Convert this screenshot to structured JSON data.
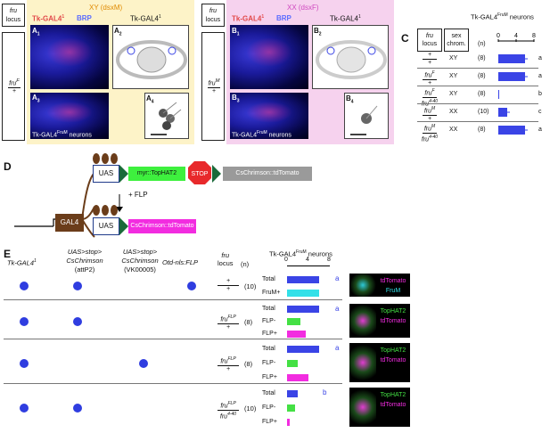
{
  "panel_A": {
    "fru_locus_header_1": "fru",
    "fru_locus_header_2": "locus",
    "genotype_top": "fru",
    "genotype_top_sup": "F",
    "genotype_bottom": "+",
    "xy_title": "XY (dsxM)",
    "tk_gal4": "Tk-GAL4",
    "tk_gal4_sup": "1",
    "brp": "BRP",
    "a1": "A",
    "a1_sub": "1",
    "a2": "A",
    "a2_sub": "2",
    "a3": "A",
    "a3_sub": "3",
    "a4": "A",
    "a4_sub": "4",
    "neurons_label": "Tk-GAL4",
    "neurons_sup": "FruM",
    "neurons_suffix": " neurons"
  },
  "panel_B": {
    "fru_locus_header_1": "fru",
    "fru_locus_header_2": "locus",
    "genotype_top": "fru",
    "genotype_top_sup": "M",
    "genotype_bottom": "+",
    "xx_title": "XX (dsxF)",
    "tk_gal4": "Tk-GAL4",
    "tk_gal4_sup": "1",
    "brp": "BRP",
    "b1": "B",
    "b1_sub": "1",
    "b2": "B",
    "b2_sub": "2",
    "b3": "B",
    "b3_sub": "3",
    "b4": "B",
    "b4_sub": "4",
    "neurons_label": "Tk-GAL4",
    "neurons_sup": "FruM",
    "neurons_suffix": " neurons"
  },
  "panel_C": {
    "letter": "C",
    "col_fru": "fru",
    "col_locus": "locus",
    "col_sex": "sex",
    "col_chrom": "chrom.",
    "col_n": "(n)",
    "title": "Tk-GAL4",
    "title_sup": "FruM",
    "title_suffix": " neurons",
    "ticks": [
      "0",
      "4",
      "8"
    ],
    "rows": [
      {
        "top": "+",
        "bottom": "+",
        "sex": "XY",
        "n": "(8)",
        "letter": "a"
      },
      {
        "top": "fru",
        "top_sup": "F",
        "bottom": "+",
        "sex": "XY",
        "n": "(8)",
        "letter": "a"
      },
      {
        "top": "fru",
        "top_sup": "F",
        "bottom": "fru",
        "bottom_sup": "4-40",
        "sex": "XY",
        "n": "(8)",
        "letter": "b"
      },
      {
        "top": "fru",
        "top_sup": "M",
        "bottom": "+",
        "sex": "XX",
        "n": "(10)",
        "letter": "c"
      },
      {
        "top": "fru",
        "top_sup": "M",
        "bottom": "fru",
        "bottom_sup": "4-40",
        "sex": "XX",
        "n": "(8)",
        "letter": "a"
      }
    ]
  },
  "chart_data": {
    "type": "bar",
    "title": "Tk-GAL4FruM neurons",
    "categories": [
      "+/+ XY",
      "fruF/+ XY",
      "fruF/fru4-40 XY",
      "fruM/+ XX",
      "fruM/fru4-40 XX"
    ],
    "values": [
      6,
      6,
      0,
      2,
      6
    ],
    "xlim": [
      0,
      8
    ]
  },
  "panel_D": {
    "letter": "D",
    "gal4": "GAL4",
    "uas": "UAS",
    "uas2": "UAS",
    "tophat": "myr::TopHAT2",
    "stop": "STOP",
    "cschrimson": "CsChrimson::tdTomato",
    "flp": "+ FLP",
    "cschrimson2": "CsChrimson::tdTomato"
  },
  "panel_E": {
    "letter": "E",
    "col1": "Tk-GAL4",
    "col1_sup": "1",
    "col2_l1": "UAS>stop>",
    "col2_l2": "CsChrimson",
    "col2_l3": "(attP2)",
    "col3_l1": "UAS>stop>",
    "col3_l2": "CsChrimson",
    "col3_l3": "(VK00005)",
    "col4": "Otd-nls:FLP",
    "col5_l1": "fru",
    "col5_l2": "locus",
    "col_n": "(n)",
    "title": "Tk-GAL4",
    "title_sup": "FruM",
    "title_suffix": " neurons",
    "ticks": [
      "0",
      "4",
      "8"
    ],
    "groups": [
      {
        "top": "+",
        "bottom": "+",
        "n": "(10)",
        "rows": [
          "Total",
          "FruM+"
        ],
        "letter": "a",
        "img_labels": [
          "tdTomato",
          "FruM"
        ]
      },
      {
        "top": "fru",
        "top_sup": "FLP",
        "bottom": "+",
        "n": "(8)",
        "rows": [
          "Total",
          "FLP-",
          "FLP+"
        ],
        "letter": "a",
        "img_labels": [
          "TopHAT2",
          "tdTomato"
        ]
      },
      {
        "top": "fru",
        "top_sup": "FLP",
        "bottom": "+",
        "n": "(8)",
        "rows": [
          "Total",
          "FLP-",
          "FLP+"
        ],
        "letter": "a",
        "img_labels": [
          "TopHAT2",
          "tdTomato"
        ]
      },
      {
        "top": "fru",
        "top_sup": "FLP",
        "bottom": "fru",
        "bottom_sup": "4-40",
        "n": "(10)",
        "rows": [
          "Total",
          "FLP-",
          "FLP+"
        ],
        "letter": "b",
        "img_labels": [
          "TopHAT2",
          "tdTomato"
        ]
      }
    ]
  },
  "colors": {
    "yellow_bg": "#fdf3c8",
    "pink_bg": "#f6d2ee",
    "bar_blue": "#3a44e6",
    "cyan": "#33e0e8",
    "green": "#44e044",
    "magenta": "#f22ce0",
    "gal4_brown": "#6b3d1a",
    "stop_red": "#e8292b",
    "tophat_green": "#3ef03e",
    "gray": "#9a9a9a",
    "xy_orange": "#e08a00",
    "xx_pink": "#d04ac0"
  }
}
